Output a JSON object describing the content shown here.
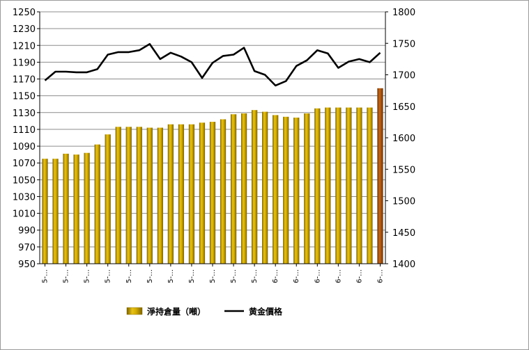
{
  "chart_data": {
    "type": "bar+line",
    "categories": [
      "5-…",
      "5-…",
      "5-…",
      "5-…",
      "5-…",
      "5-…",
      "5-…",
      "5-…",
      "5-…",
      "5-…",
      "5-…",
      "5-…",
      "5-…",
      "5-…",
      "5-…",
      "5-…",
      "5-…",
      "5-…",
      "5-…",
      "5-…",
      "6-…",
      "6-…",
      "6-…",
      "6-…",
      "6-…",
      "6-…",
      "6-…",
      "6-…",
      "6-…",
      "6-…",
      "6-…",
      "6-…",
      "6-…"
    ],
    "x_tick_labels": [
      "5-…",
      "5-…",
      "5-…",
      "5-…",
      "5-…",
      "5-…",
      "5-…",
      "5-…",
      "5-…",
      "5-…",
      "5-…",
      "6-…",
      "6-…",
      "6-…",
      "6-…",
      "6-…",
      "6-…"
    ],
    "series": [
      {
        "name": "淨持倉量（噸）",
        "type": "bar",
        "axis": "left",
        "color": "#c9a300",
        "values": [
          1075,
          1075,
          1081,
          1080,
          1082,
          1092,
          1104,
          1113,
          1113,
          1113,
          1112,
          1112,
          1116,
          1116,
          1116,
          1118,
          1119,
          1122,
          1128,
          1129,
          1133,
          1131,
          1127,
          1125,
          1124,
          1129,
          1135,
          1136,
          1136,
          1136,
          1136,
          1136,
          1159
        ]
      },
      {
        "name": "黄金價格",
        "type": "line",
        "axis": "right",
        "color": "#000000",
        "values": [
          1691,
          1705,
          1705,
          1704,
          1704,
          1709,
          1732,
          1736,
          1736,
          1739,
          1749,
          1725,
          1735,
          1729,
          1720,
          1695,
          1719,
          1730,
          1732,
          1743,
          1706,
          1700,
          1683,
          1690,
          1714,
          1723,
          1739,
          1734,
          1711,
          1721,
          1725,
          1720,
          1735
        ]
      }
    ],
    "y_left": {
      "min": 950,
      "max": 1250,
      "step": 20
    },
    "y_right": {
      "min": 1400,
      "max": 1800,
      "step": 50
    },
    "y_left_ticks": [
      "950",
      "970",
      "990",
      "1010",
      "1030",
      "1050",
      "1070",
      "1090",
      "1110",
      "1130",
      "1150",
      "1170",
      "1190",
      "1210",
      "1230",
      "1250"
    ],
    "y_right_ticks": [
      "1400",
      "1450",
      "1500",
      "1550",
      "1600",
      "1650",
      "1700",
      "1750",
      "1800"
    ],
    "highlight_last_bar_color": "#b35a10",
    "grid": true,
    "legend_position": "bottom"
  },
  "legend": {
    "bar_label": "淨持倉量（噸）",
    "line_label": "黄金價格"
  }
}
